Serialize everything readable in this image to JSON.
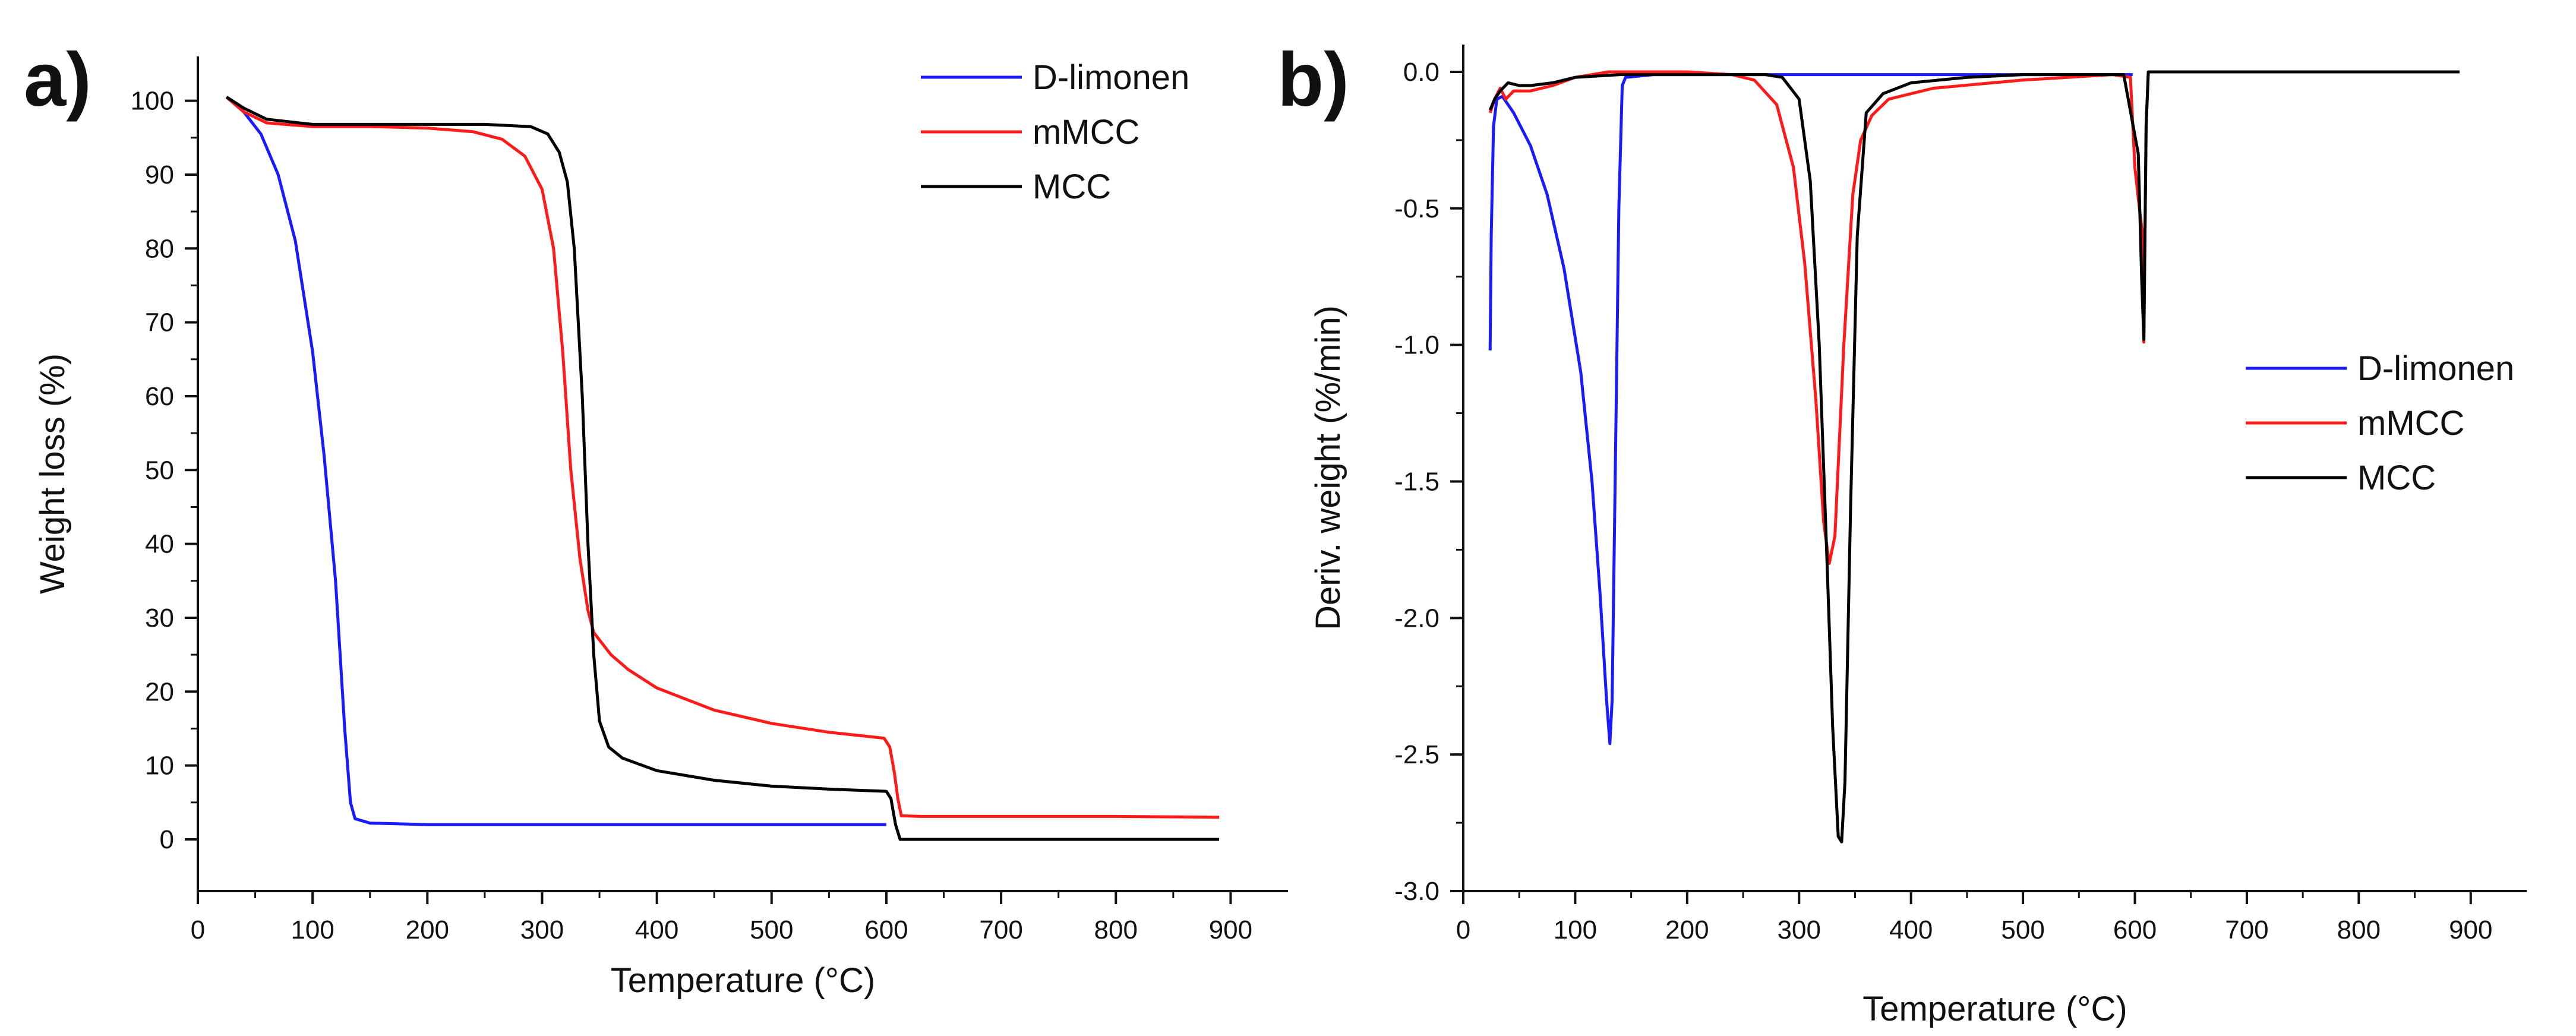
{
  "chart_data": [
    {
      "type": "line",
      "panel_label": "a)",
      "xlabel": "Temperature (°C)",
      "ylabel": "Weight loss (%)",
      "xlim": [
        0,
        950
      ],
      "ylim": [
        -7,
        106
      ],
      "xticks": [
        0,
        100,
        200,
        300,
        400,
        500,
        600,
        700,
        800,
        900
      ],
      "yticks": [
        0,
        10,
        20,
        30,
        40,
        50,
        60,
        70,
        80,
        90,
        100
      ],
      "legend_position": "top-right",
      "series": [
        {
          "name": "D-limonen",
          "color": "#1a1aff",
          "points": [
            [
              25,
              100.5
            ],
            [
              40,
              98.5
            ],
            [
              55,
              95.5
            ],
            [
              70,
              90
            ],
            [
              85,
              81
            ],
            [
              100,
              66
            ],
            [
              110,
              52
            ],
            [
              120,
              35
            ],
            [
              128,
              15
            ],
            [
              133,
              5
            ],
            [
              137,
              2.8
            ],
            [
              150,
              2.2
            ],
            [
              200,
              2
            ],
            [
              300,
              2
            ],
            [
              400,
              2
            ],
            [
              500,
              2
            ],
            [
              600,
              2
            ]
          ]
        },
        {
          "name": "mMCC",
          "color": "#ff1a1a",
          "points": [
            [
              25,
              100.5
            ],
            [
              40,
              98.5
            ],
            [
              60,
              97
            ],
            [
              100,
              96.5
            ],
            [
              150,
              96.5
            ],
            [
              200,
              96.3
            ],
            [
              240,
              95.8
            ],
            [
              265,
              94.8
            ],
            [
              285,
              92.5
            ],
            [
              300,
              88
            ],
            [
              310,
              80
            ],
            [
              318,
              66
            ],
            [
              325,
              50
            ],
            [
              333,
              38
            ],
            [
              340,
              31
            ],
            [
              345,
              28
            ],
            [
              350,
              27
            ],
            [
              360,
              25
            ],
            [
              375,
              23
            ],
            [
              400,
              20.5
            ],
            [
              450,
              17.5
            ],
            [
              500,
              15.7
            ],
            [
              550,
              14.5
            ],
            [
              598,
              13.7
            ],
            [
              603,
              12.5
            ],
            [
              607,
              9
            ],
            [
              610,
              5.5
            ],
            [
              613,
              3.2
            ],
            [
              630,
              3.1
            ],
            [
              700,
              3.1
            ],
            [
              800,
              3.1
            ],
            [
              890,
              3
            ]
          ]
        },
        {
          "name": "MCC",
          "color": "#000000",
          "points": [
            [
              25,
              100.5
            ],
            [
              40,
              99
            ],
            [
              60,
              97.5
            ],
            [
              100,
              96.8
            ],
            [
              150,
              96.8
            ],
            [
              200,
              96.8
            ],
            [
              250,
              96.8
            ],
            [
              290,
              96.5
            ],
            [
              305,
              95.5
            ],
            [
              315,
              93
            ],
            [
              322,
              89
            ],
            [
              328,
              80
            ],
            [
              335,
              60
            ],
            [
              340,
              40
            ],
            [
              345,
              25
            ],
            [
              350,
              16
            ],
            [
              358,
              12.5
            ],
            [
              370,
              11
            ],
            [
              400,
              9.3
            ],
            [
              450,
              8
            ],
            [
              500,
              7.2
            ],
            [
              550,
              6.8
            ],
            [
              600,
              6.5
            ],
            [
              604,
              5.5
            ],
            [
              608,
              2
            ],
            [
              612,
              0
            ],
            [
              700,
              0
            ],
            [
              800,
              0
            ],
            [
              890,
              0
            ]
          ]
        }
      ]
    },
    {
      "type": "line",
      "panel_label": "b)",
      "xlabel": "Temperature (°C)",
      "ylabel": "Deriv. weight (%/min)",
      "xlim": [
        0,
        950
      ],
      "ylim": [
        -3.0,
        0.1
      ],
      "xticks": [
        0,
        100,
        200,
        300,
        400,
        500,
        600,
        700,
        800,
        900
      ],
      "yticks": [
        0.0,
        -0.5,
        -1.0,
        -1.5,
        -2.0,
        -2.5,
        -3.0
      ],
      "ytick_labels": [
        "0.0",
        "-0.5",
        "-1.0",
        "-1.5",
        "-2.0",
        "-2.5",
        "-3.0"
      ],
      "legend_position": "center-right",
      "series": [
        {
          "name": "D-limonen",
          "color": "#1a1aff",
          "points": [
            [
              24,
              -1.02
            ],
            [
              25,
              -0.6
            ],
            [
              27,
              -0.2
            ],
            [
              30,
              -0.1
            ],
            [
              35,
              -0.09
            ],
            [
              45,
              -0.15
            ],
            [
              60,
              -0.27
            ],
            [
              75,
              -0.45
            ],
            [
              90,
              -0.72
            ],
            [
              105,
              -1.1
            ],
            [
              115,
              -1.5
            ],
            [
              122,
              -1.9
            ],
            [
              128,
              -2.3
            ],
            [
              131,
              -2.46
            ],
            [
              133,
              -2.3
            ],
            [
              136,
              -1.4
            ],
            [
              139,
              -0.5
            ],
            [
              142,
              -0.05
            ],
            [
              145,
              -0.02
            ],
            [
              170,
              -0.01
            ],
            [
              300,
              -0.01
            ],
            [
              500,
              -0.01
            ],
            [
              598,
              -0.01
            ]
          ]
        },
        {
          "name": "mMCC",
          "color": "#ff1a1a",
          "points": [
            [
              24,
              -0.15
            ],
            [
              28,
              -0.1
            ],
            [
              33,
              -0.06
            ],
            [
              38,
              -0.1
            ],
            [
              45,
              -0.07
            ],
            [
              60,
              -0.07
            ],
            [
              80,
              -0.05
            ],
            [
              100,
              -0.02
            ],
            [
              130,
              0
            ],
            [
              200,
              0
            ],
            [
              240,
              -0.01
            ],
            [
              260,
              -0.03
            ],
            [
              280,
              -0.12
            ],
            [
              295,
              -0.35
            ],
            [
              305,
              -0.7
            ],
            [
              315,
              -1.2
            ],
            [
              322,
              -1.65
            ],
            [
              327,
              -1.8
            ],
            [
              332,
              -1.7
            ],
            [
              340,
              -1.0
            ],
            [
              348,
              -0.45
            ],
            [
              355,
              -0.25
            ],
            [
              365,
              -0.16
            ],
            [
              380,
              -0.1
            ],
            [
              420,
              -0.06
            ],
            [
              500,
              -0.03
            ],
            [
              580,
              -0.01
            ],
            [
              596,
              -0.02
            ],
            [
              600,
              -0.35
            ],
            [
              604,
              -0.5
            ],
            [
              607,
              -0.6
            ],
            [
              608,
              -0.99
            ],
            [
              610,
              -0.2
            ],
            [
              612,
              0
            ],
            [
              700,
              0
            ],
            [
              800,
              0
            ],
            [
              890,
              0
            ]
          ]
        },
        {
          "name": "MCC",
          "color": "#000000",
          "points": [
            [
              24,
              -0.14
            ],
            [
              28,
              -0.1
            ],
            [
              33,
              -0.07
            ],
            [
              40,
              -0.04
            ],
            [
              50,
              -0.05
            ],
            [
              60,
              -0.05
            ],
            [
              80,
              -0.04
            ],
            [
              100,
              -0.02
            ],
            [
              140,
              -0.01
            ],
            [
              200,
              -0.01
            ],
            [
              270,
              -0.01
            ],
            [
              285,
              -0.02
            ],
            [
              300,
              -0.1
            ],
            [
              310,
              -0.4
            ],
            [
              318,
              -1.0
            ],
            [
              325,
              -1.8
            ],
            [
              330,
              -2.4
            ],
            [
              335,
              -2.8
            ],
            [
              338,
              -2.82
            ],
            [
              341,
              -2.6
            ],
            [
              346,
              -1.6
            ],
            [
              352,
              -0.6
            ],
            [
              360,
              -0.15
            ],
            [
              375,
              -0.08
            ],
            [
              400,
              -0.04
            ],
            [
              450,
              -0.02
            ],
            [
              500,
              -0.01
            ],
            [
              590,
              -0.01
            ],
            [
              603,
              -0.3
            ],
            [
              606,
              -0.75
            ],
            [
              608,
              -0.98
            ],
            [
              610,
              -0.2
            ],
            [
              612,
              0
            ],
            [
              700,
              0
            ],
            [
              800,
              0
            ],
            [
              890,
              0
            ]
          ]
        }
      ]
    }
  ]
}
